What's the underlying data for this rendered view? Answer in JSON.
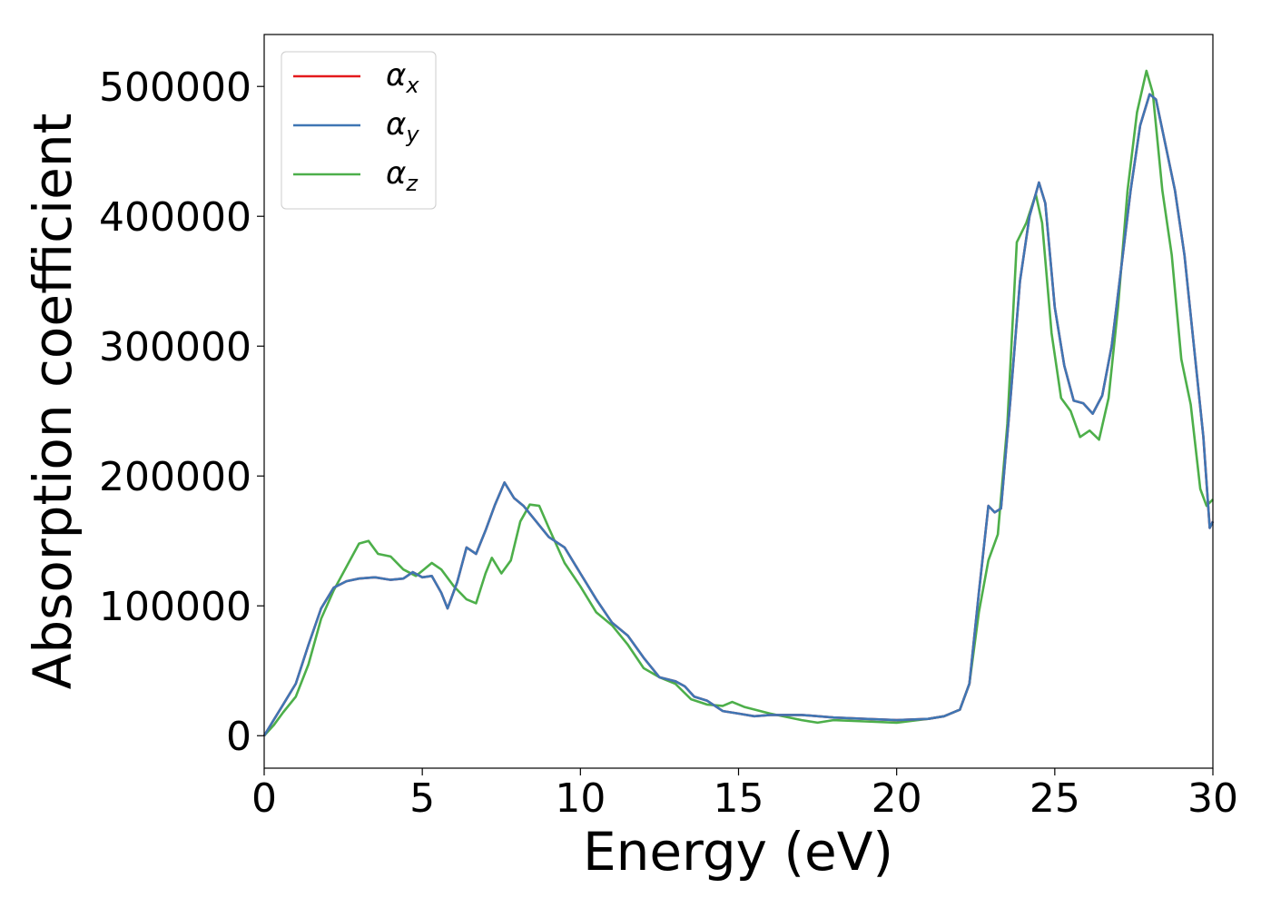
{
  "chart_data": {
    "type": "line",
    "xlabel": "Energy (eV)",
    "ylabel": "Absorption coefficient",
    "xlim": [
      0,
      30
    ],
    "ylim": [
      -25000,
      540000
    ],
    "xticks": [
      0,
      5,
      10,
      15,
      20,
      25,
      30
    ],
    "yticks": [
      0,
      100000,
      200000,
      300000,
      400000,
      500000
    ],
    "grid": false,
    "legend_position": "top-left",
    "series": [
      {
        "name": "α",
        "sub": "x",
        "color": "#e41a1c",
        "x": [
          0,
          0.3,
          0.6,
          1.0,
          1.4,
          1.8,
          2.2,
          2.6,
          3.0,
          3.5,
          4.0,
          4.4,
          4.7,
          5.0,
          5.3,
          5.6,
          5.8,
          6.1,
          6.4,
          6.7,
          7.0,
          7.3,
          7.6,
          7.9,
          8.2,
          8.6,
          9.0,
          9.5,
          10.0,
          10.5,
          11.0,
          11.5,
          12.0,
          12.5,
          13.0,
          13.3,
          13.6,
          14.0,
          14.5,
          15.0,
          15.5,
          16.0,
          17.0,
          18.0,
          19.0,
          20.0,
          21.0,
          21.5,
          22.0,
          22.3,
          22.6,
          22.9,
          23.1,
          23.3,
          23.6,
          23.9,
          24.2,
          24.5,
          24.7,
          25.0,
          25.3,
          25.6,
          25.9,
          26.2,
          26.5,
          26.8,
          27.1,
          27.4,
          27.7,
          28.0,
          28.2,
          28.5,
          28.8,
          29.1,
          29.4,
          29.7,
          29.9,
          30.0
        ],
        "y": [
          0,
          12000,
          24000,
          40000,
          70000,
          98000,
          114000,
          119000,
          121000,
          122000,
          120000,
          121000,
          126000,
          122000,
          123000,
          110000,
          98000,
          118000,
          145000,
          140000,
          158000,
          178000,
          195000,
          183000,
          177000,
          165000,
          153000,
          145000,
          125000,
          105000,
          87000,
          77000,
          60000,
          45000,
          42000,
          38000,
          30000,
          27000,
          19000,
          17000,
          15000,
          16000,
          16000,
          14000,
          13000,
          12000,
          13000,
          15000,
          20000,
          40000,
          110000,
          177000,
          172000,
          175000,
          260000,
          350000,
          400000,
          426000,
          410000,
          330000,
          285000,
          258000,
          256000,
          248000,
          262000,
          300000,
          360000,
          420000,
          470000,
          494000,
          490000,
          455000,
          420000,
          370000,
          300000,
          230000,
          160000,
          165000
        ]
      },
      {
        "name": "α",
        "sub": "y",
        "color": "#3f76b4",
        "x": [
          0,
          0.3,
          0.6,
          1.0,
          1.4,
          1.8,
          2.2,
          2.6,
          3.0,
          3.5,
          4.0,
          4.4,
          4.7,
          5.0,
          5.3,
          5.6,
          5.8,
          6.1,
          6.4,
          6.7,
          7.0,
          7.3,
          7.6,
          7.9,
          8.2,
          8.6,
          9.0,
          9.5,
          10.0,
          10.5,
          11.0,
          11.5,
          12.0,
          12.5,
          13.0,
          13.3,
          13.6,
          14.0,
          14.5,
          15.0,
          15.5,
          16.0,
          17.0,
          18.0,
          19.0,
          20.0,
          21.0,
          21.5,
          22.0,
          22.3,
          22.6,
          22.9,
          23.1,
          23.3,
          23.6,
          23.9,
          24.2,
          24.5,
          24.7,
          25.0,
          25.3,
          25.6,
          25.9,
          26.2,
          26.5,
          26.8,
          27.1,
          27.4,
          27.7,
          28.0,
          28.2,
          28.5,
          28.8,
          29.1,
          29.4,
          29.7,
          29.9,
          30.0
        ],
        "y": [
          0,
          12000,
          24000,
          40000,
          70000,
          98000,
          114000,
          119000,
          121000,
          122000,
          120000,
          121000,
          126000,
          122000,
          123000,
          110000,
          98000,
          118000,
          145000,
          140000,
          158000,
          178000,
          195000,
          183000,
          177000,
          165000,
          153000,
          145000,
          125000,
          105000,
          87000,
          77000,
          60000,
          45000,
          42000,
          38000,
          30000,
          27000,
          19000,
          17000,
          15000,
          16000,
          16000,
          14000,
          13000,
          12000,
          13000,
          15000,
          20000,
          40000,
          110000,
          177000,
          172000,
          175000,
          260000,
          350000,
          400000,
          426000,
          410000,
          330000,
          285000,
          258000,
          256000,
          248000,
          262000,
          300000,
          360000,
          420000,
          470000,
          494000,
          490000,
          455000,
          420000,
          370000,
          300000,
          230000,
          160000,
          165000
        ]
      },
      {
        "name": "α",
        "sub": "z",
        "color": "#4daf4a",
        "x": [
          0,
          0.3,
          0.6,
          1.0,
          1.4,
          1.8,
          2.2,
          2.6,
          3.0,
          3.3,
          3.6,
          4.0,
          4.4,
          4.8,
          5.0,
          5.3,
          5.6,
          6.0,
          6.4,
          6.7,
          7.0,
          7.2,
          7.5,
          7.8,
          8.1,
          8.4,
          8.7,
          9.0,
          9.5,
          10.0,
          10.5,
          11.0,
          11.5,
          12.0,
          12.5,
          13.0,
          13.5,
          14.0,
          14.5,
          14.8,
          15.2,
          16.0,
          17.0,
          17.5,
          18.0,
          19.0,
          20.0,
          21.0,
          21.5,
          22.0,
          22.3,
          22.6,
          22.9,
          23.2,
          23.5,
          23.8,
          24.1,
          24.4,
          24.6,
          24.9,
          25.2,
          25.5,
          25.8,
          26.1,
          26.4,
          26.7,
          27.0,
          27.3,
          27.6,
          27.9,
          28.1,
          28.4,
          28.7,
          29.0,
          29.3,
          29.6,
          29.8,
          30.0
        ],
        "y": [
          0,
          8000,
          18000,
          30000,
          55000,
          90000,
          112000,
          130000,
          148000,
          150000,
          140000,
          138000,
          128000,
          123000,
          127000,
          133000,
          128000,
          115000,
          105000,
          102000,
          125000,
          137000,
          125000,
          135000,
          165000,
          178000,
          177000,
          160000,
          133000,
          115000,
          95000,
          85000,
          70000,
          52000,
          45000,
          40000,
          28000,
          24000,
          23000,
          26000,
          22000,
          17000,
          12000,
          10000,
          12000,
          11000,
          10000,
          13000,
          15000,
          20000,
          40000,
          95000,
          135000,
          155000,
          240000,
          380000,
          395000,
          417000,
          395000,
          310000,
          260000,
          250000,
          230000,
          235000,
          228000,
          260000,
          330000,
          420000,
          480000,
          512000,
          495000,
          420000,
          370000,
          290000,
          255000,
          190000,
          177000,
          182000
        ]
      }
    ]
  }
}
